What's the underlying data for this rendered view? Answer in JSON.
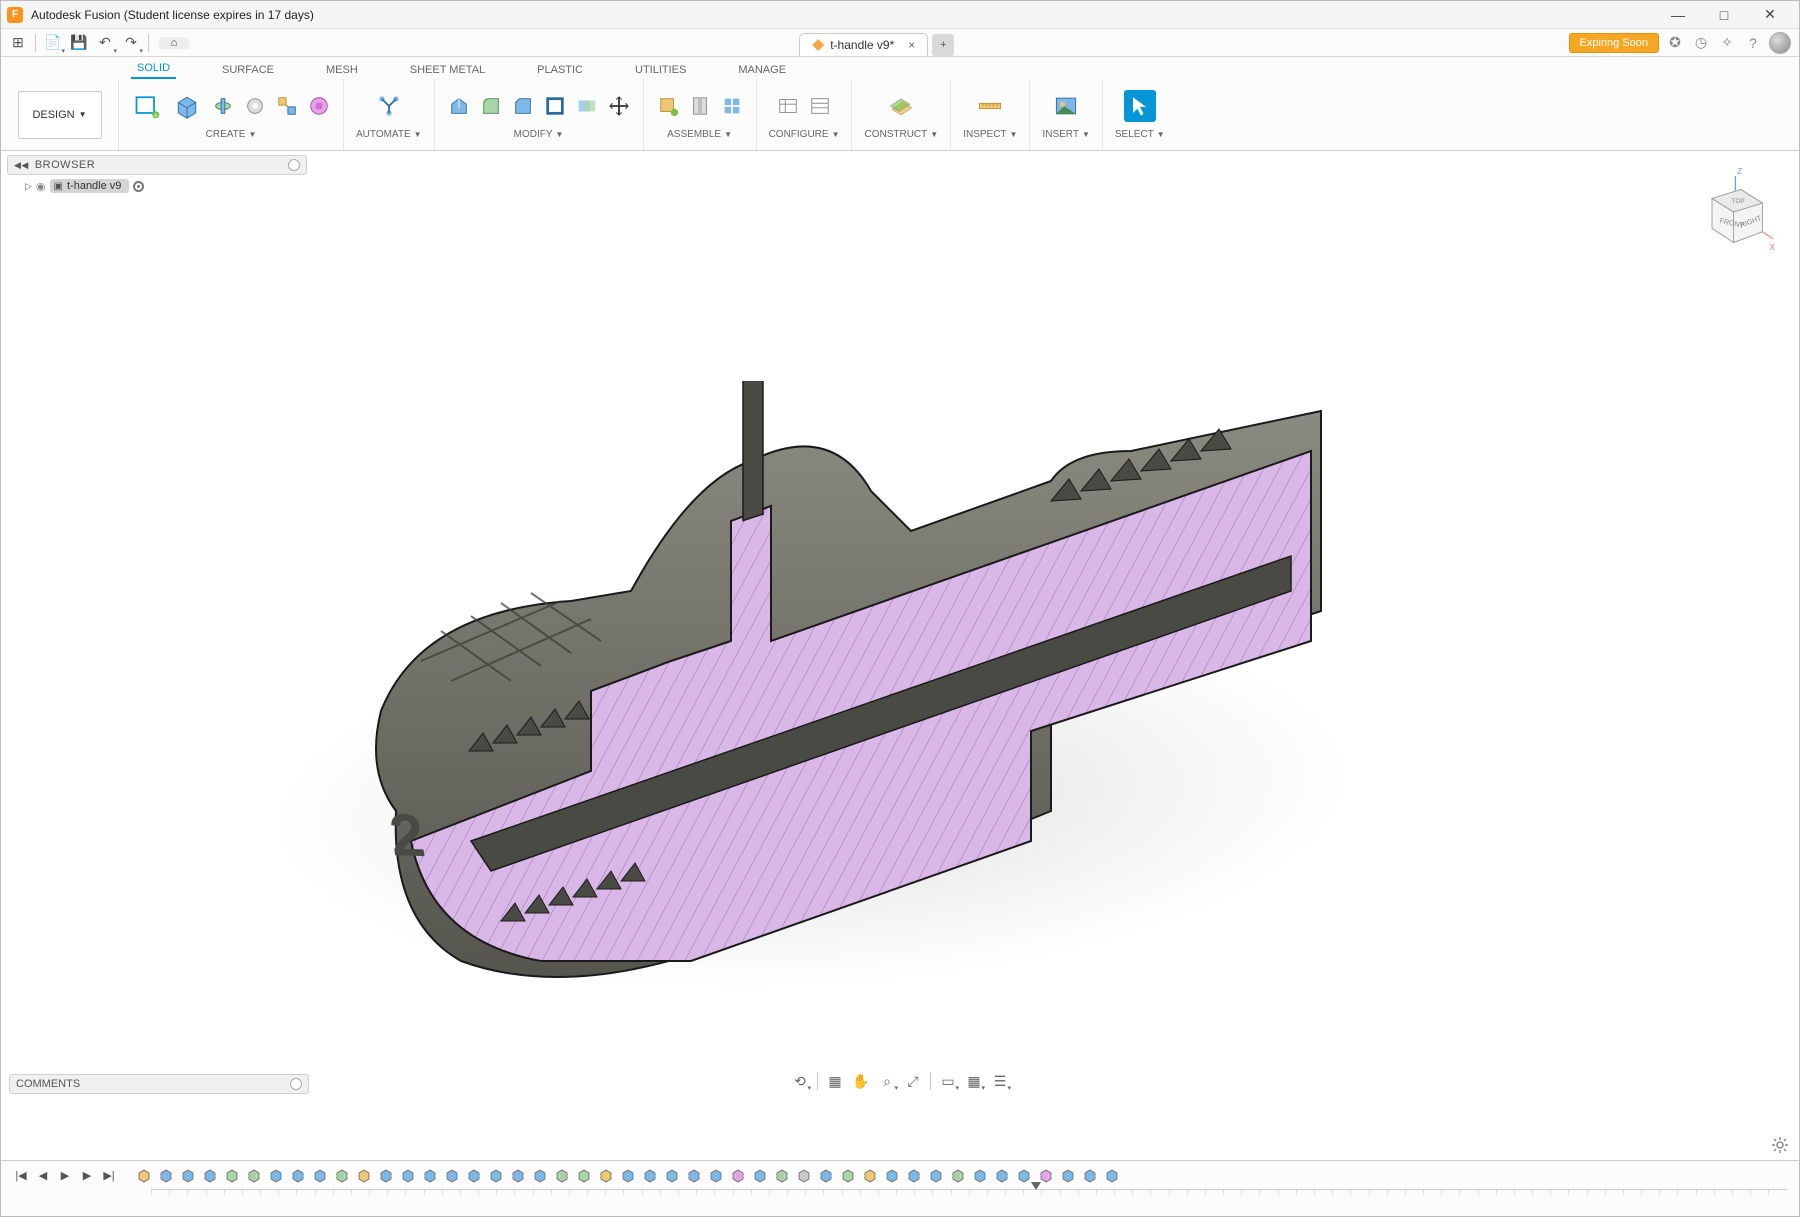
{
  "window": {
    "title": "Autodesk Fusion (Student license expires in 17 days)",
    "minimize_glyph": "—",
    "maximize_glyph": "□",
    "close_glyph": "✕",
    "app_icon_letter": "F"
  },
  "qat": {
    "apps_glyph": "⊞",
    "file_glyph": "📄",
    "save_glyph": "💾",
    "undo_glyph": "↶",
    "redo_glyph": "↷",
    "home_glyph": "⌂"
  },
  "doc_tab": {
    "label": "t-handle v9*",
    "close_glyph": "×",
    "add_glyph": "+"
  },
  "tray": {
    "expiring_label": "Expiring Soon",
    "status_glyph": "✪",
    "clock_glyph": "◷",
    "extension_glyph": "✧",
    "help_glyph": "?",
    "notif_glyph": "◍"
  },
  "ribbon_tabs": {
    "solid": "SOLID",
    "surface": "SURFACE",
    "mesh": "MESH",
    "sheet_metal": "SHEET METAL",
    "plastic": "PLASTIC",
    "utilities": "UTILITIES",
    "manage": "MANAGE"
  },
  "ribbon": {
    "design_label": "DESIGN",
    "groups": {
      "create": "CREATE",
      "automate": "AUTOMATE",
      "modify": "MODIFY",
      "assemble": "ASSEMBLE",
      "configure": "CONFIGURE",
      "construct": "CONSTRUCT",
      "inspect": "INSPECT",
      "insert": "INSERT",
      "select": "SELECT"
    }
  },
  "browser": {
    "title": "BROWSER",
    "root_label": "t-handle v9"
  },
  "viewcube": {
    "front": "FRONT",
    "right": "RIGHT",
    "top": "TOP",
    "z": "Z",
    "x": "X"
  },
  "comments": {
    "title": "COMMENTS"
  },
  "navtools": {
    "orbit": "⟲",
    "look": "▦",
    "pan": "✋",
    "zoom": "⌕",
    "fit": "⤢",
    "display1": "▭",
    "display2": "▦",
    "display3": "☰"
  },
  "timeline": {
    "controls": {
      "start": "|◀",
      "prev": "◀",
      "play": "▶",
      "next": "▶",
      "end": "▶|"
    }
  },
  "model": {
    "section_color": "#d9b8e8",
    "body_color": "#6b6b62",
    "body_light": "#8a8a80",
    "edge_color": "#1a1a1a",
    "emboss_digit": "2"
  },
  "colors": {
    "accent": "#0696d7",
    "warn": "#f5a623",
    "ribbon_bg": "#fcfcfc",
    "panel_bg": "#f0f0f0"
  }
}
